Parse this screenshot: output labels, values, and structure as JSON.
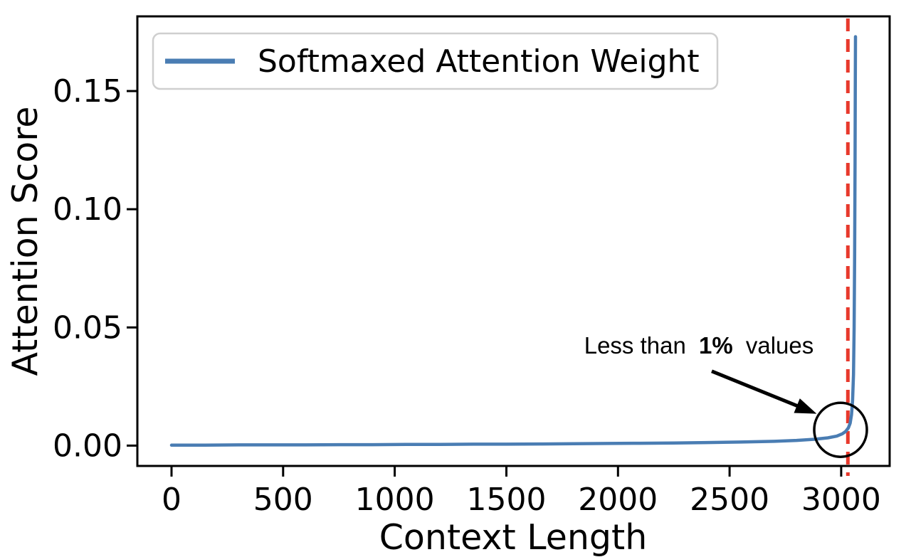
{
  "chart_data": {
    "type": "line",
    "title": "",
    "xlabel": "Context Length",
    "ylabel": "Attention Score",
    "xlim": [
      -153,
      3217
    ],
    "ylim": [
      -0.0086,
      0.1816
    ],
    "x_ticks": [
      0,
      500,
      1000,
      1500,
      2000,
      2500,
      3000
    ],
    "y_ticks": [
      0.0,
      0.05,
      0.1,
      0.15
    ],
    "y_tick_labels": [
      "0.00",
      "0.05",
      "0.10",
      "0.15"
    ],
    "grid": false,
    "legend": {
      "position": "upper left",
      "entries": [
        {
          "label": "Softmaxed Attention Weight",
          "color": "#4a7db3"
        }
      ]
    },
    "series": [
      {
        "name": "Softmaxed Attention Weight",
        "color": "#4a7db3",
        "x": [
          0,
          150,
          300,
          450,
          600,
          750,
          900,
          1050,
          1200,
          1350,
          1500,
          1650,
          1800,
          1950,
          2100,
          2250,
          2400,
          2550,
          2700,
          2800,
          2880,
          2940,
          2980,
          3005,
          3020,
          3032,
          3040,
          3046,
          3051,
          3055,
          3058,
          3060,
          3062,
          3063,
          3064
        ],
        "y": [
          0.0002,
          0.0002,
          0.0003,
          0.0003,
          0.0003,
          0.0004,
          0.0004,
          0.0005,
          0.0005,
          0.0006,
          0.0006,
          0.0007,
          0.0008,
          0.0009,
          0.001,
          0.0011,
          0.0013,
          0.0015,
          0.0018,
          0.0022,
          0.0027,
          0.0033,
          0.004,
          0.005,
          0.006,
          0.0075,
          0.0095,
          0.013,
          0.019,
          0.03,
          0.05,
          0.08,
          0.12,
          0.15,
          0.173
        ]
      }
    ],
    "vline": {
      "x": 3030,
      "color": "#e8392c",
      "style": "dashed"
    },
    "annotation": {
      "text_prefix": "Less than",
      "text_bold": "1%",
      "text_suffix": "values",
      "text_pos": [
        2360,
        0.0425
      ],
      "arrow_from": [
        2420,
        0.0315
      ],
      "arrow_to": [
        2890,
        0.0135
      ],
      "circle_center": [
        2997,
        0.0067
      ],
      "circle_radius_px": 37,
      "color": "#000000"
    },
    "colors": {
      "line": "#4a7db3",
      "vline": "#e8392c",
      "spine": "#000000",
      "legend_border": "#cfcfcf",
      "legend_bg": "#ffffff"
    }
  }
}
